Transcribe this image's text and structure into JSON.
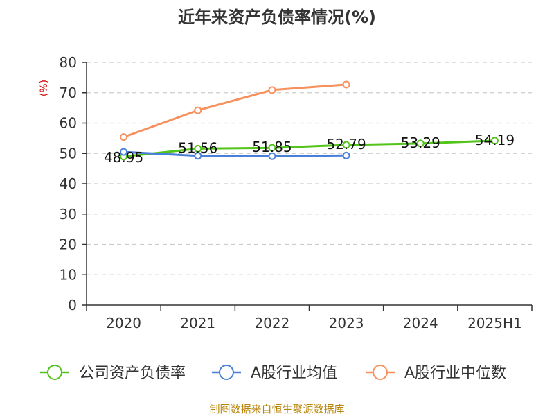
{
  "chart_data": {
    "type": "line",
    "title": "近年来资产负债率情况(%)",
    "ylabel": "(%)",
    "categories": [
      "2020",
      "2021",
      "2022",
      "2023",
      "2024",
      "2025H1"
    ],
    "ylim": [
      0,
      80
    ],
    "yticks": [
      0,
      10,
      20,
      30,
      40,
      50,
      60,
      70,
      80
    ],
    "grid": true,
    "legend_position": "bottom",
    "series": [
      {
        "name": "公司资产负债率",
        "color": "#52c41a",
        "values": [
          48.95,
          51.56,
          51.85,
          52.79,
          53.29,
          54.19
        ],
        "labels": [
          "48.95",
          "51.56",
          "51.85",
          "52.79",
          "53.29",
          "54.19"
        ]
      },
      {
        "name": "A股行业均值",
        "color": "#4a7fd8",
        "values": [
          50.5,
          49.2,
          49.1,
          49.3,
          null,
          null
        ]
      },
      {
        "name": "A股行业中位数",
        "color": "#f7905c",
        "values": [
          55.4,
          64.2,
          70.9,
          72.7,
          null,
          null
        ]
      }
    ]
  },
  "source": "制图数据来自恒生聚源数据库"
}
